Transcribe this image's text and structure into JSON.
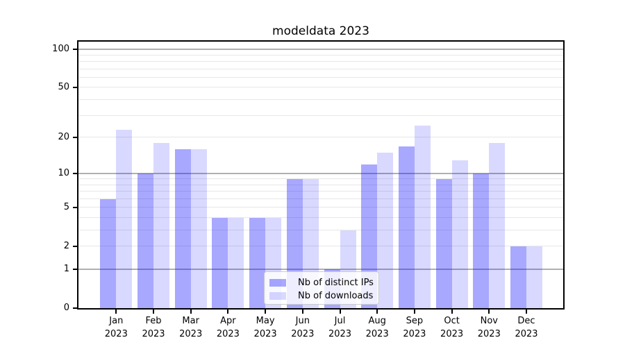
{
  "chart_data": {
    "type": "bar",
    "title": "modeldata 2023",
    "categories": [
      "Jan 2023",
      "Feb 2023",
      "Mar 2023",
      "Apr 2023",
      "May 2023",
      "Jun 2023",
      "Jul 2023",
      "Aug 2023",
      "Sep 2023",
      "Oct 2023",
      "Nov 2023",
      "Dec 2023"
    ],
    "series": [
      {
        "name": "Nb of distinct IPs",
        "color": "#0000ff",
        "alpha": 0.34,
        "values": [
          6,
          10,
          16,
          4,
          4,
          9,
          1,
          12,
          17,
          9,
          10,
          2
        ]
      },
      {
        "name": "Nb of downloads",
        "color": "#0000ff",
        "alpha": 0.15,
        "values": [
          23,
          18,
          16,
          4,
          4,
          9,
          3,
          15,
          25,
          13,
          18,
          2
        ]
      }
    ],
    "xlabel": "",
    "ylabel": "",
    "yscale": "log10(1+x)",
    "ylim": [
      0,
      115
    ],
    "y_tick_labels": [
      "100",
      "50",
      "20",
      "10",
      "5",
      "2",
      "1",
      "0"
    ],
    "y_major_gridlines": [
      1,
      10,
      100
    ],
    "y_minor_gridlines": [
      2,
      3,
      4,
      5,
      6,
      7,
      8,
      9,
      20,
      30,
      40,
      50,
      60,
      70,
      80,
      90
    ],
    "grid": true,
    "legend_position": "lower center",
    "colors": {
      "bar_ips_on_white": "#a8a8fa",
      "bar_downloads_on_white": "#d9d9fa",
      "major_grid": "#b0b0b0",
      "minor_grid": "#e7e7e7",
      "axis": "#000000",
      "legend_border": "#cccccc"
    }
  }
}
